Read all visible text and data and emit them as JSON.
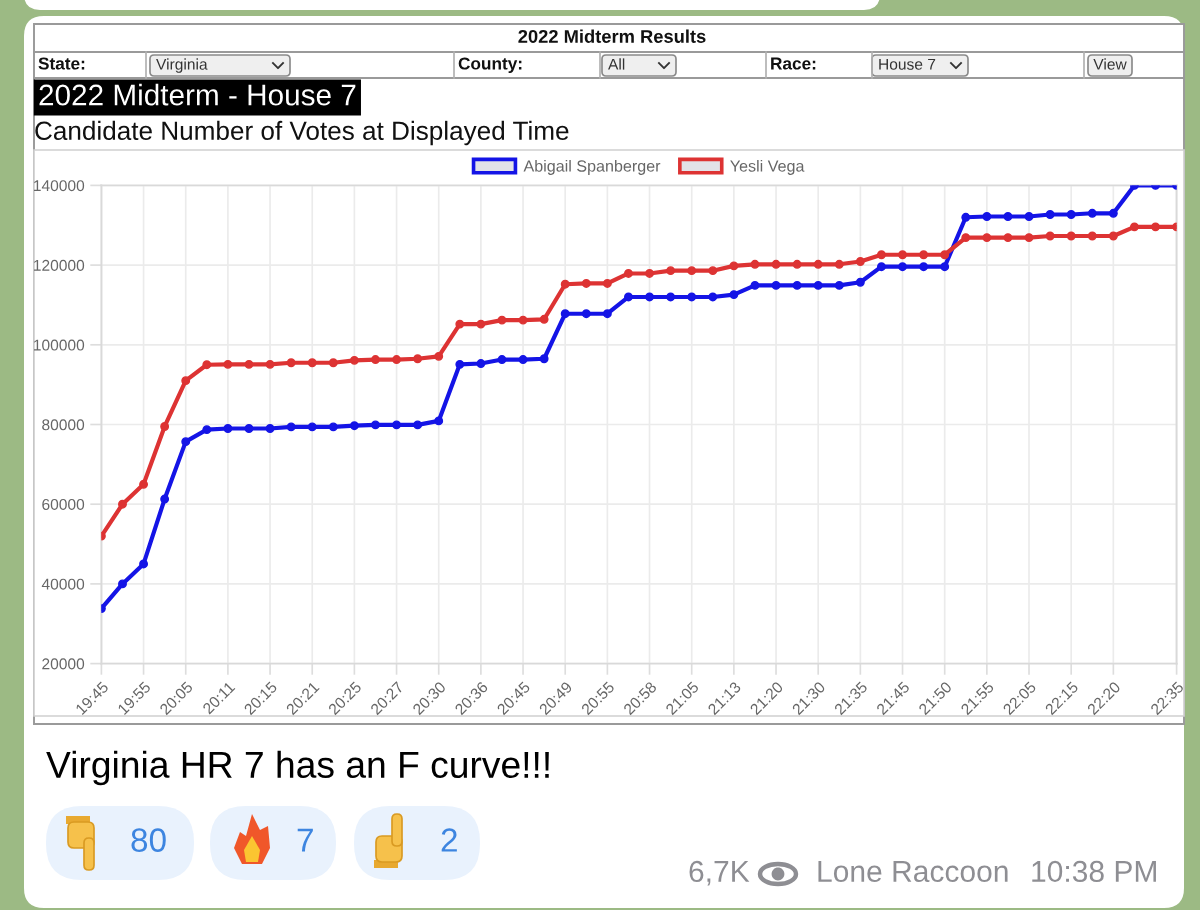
{
  "chart_data": {
    "type": "line",
    "title": "2022 Midterm - House 7",
    "subtitle": "Candidate Number of Votes at Displayed Time",
    "categories": [
      "19:45",
      null,
      "19:55",
      null,
      "20:05",
      null,
      "20:11",
      null,
      "20:15",
      null,
      "20:21",
      null,
      "20:25",
      null,
      "20:27",
      null,
      "20:30",
      null,
      "20:36",
      null,
      "20:45",
      null,
      "20:49",
      null,
      "20:55",
      null,
      "20:58",
      null,
      "21:05",
      null,
      "21:13",
      null,
      "21:20",
      null,
      "21:30",
      null,
      "21:35",
      null,
      "21:45",
      null,
      "21:50",
      null,
      "21:55",
      null,
      "22:05",
      null,
      "22:15",
      null,
      "22:20",
      null,
      null,
      "22:35"
    ],
    "series": [
      {
        "name": "Abigail Spanberger",
        "color": "#1414e6",
        "values": [
          33800,
          40000,
          45000,
          61300,
          75700,
          78700,
          79000,
          79000,
          79000,
          79400,
          79400,
          79400,
          79700,
          79900,
          79900,
          79900,
          80900,
          95100,
          95300,
          96300,
          96300,
          96500,
          107800,
          107800,
          107800,
          112000,
          112000,
          112000,
          112000,
          112000,
          112600,
          114900,
          114900,
          114900,
          114900,
          114900,
          115700,
          119600,
          119600,
          119600,
          119600,
          132000,
          132200,
          132200,
          132200,
          132700,
          132700,
          133000,
          133000,
          140000,
          140000,
          140000
        ]
      },
      {
        "name": "Yesli Vega",
        "color": "#dd3333",
        "values": [
          52000,
          60000,
          65000,
          79500,
          91000,
          95000,
          95100,
          95100,
          95100,
          95500,
          95500,
          95500,
          96100,
          96300,
          96300,
          96500,
          97100,
          105200,
          105200,
          106200,
          106200,
          106400,
          115200,
          115400,
          115400,
          117900,
          117900,
          118600,
          118600,
          118600,
          119800,
          120200,
          120200,
          120200,
          120200,
          120200,
          120900,
          122600,
          122600,
          122600,
          122600,
          126900,
          126900,
          126900,
          126900,
          127300,
          127300,
          127300,
          127300,
          129600,
          129600,
          129600
        ]
      }
    ],
    "ylim": [
      20000,
      140000
    ],
    "yticks": [
      20000,
      40000,
      60000,
      80000,
      100000,
      120000,
      140000
    ],
    "grid": true,
    "legend": "top",
    "marker": "circle",
    "line_style": "solid",
    "annotations": [
      "2022 Midterm Results",
      "State:",
      "Virginia",
      "County:",
      "All",
      "Race:",
      "House 7",
      "View",
      "Virginia HR 7 has an F curve!!!",
      "80",
      "7",
      "2",
      "6,7K",
      "Lone Raccoon",
      "10:38 PM"
    ]
  }
}
